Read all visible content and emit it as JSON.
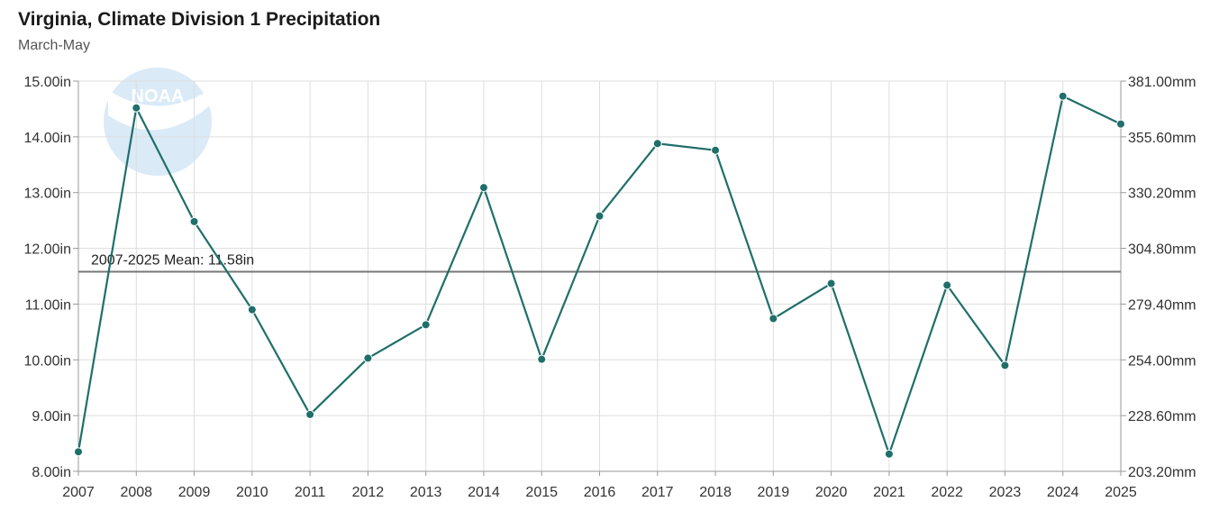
{
  "chart_data": {
    "type": "line",
    "title": "Virginia, Climate Division 1 Precipitation",
    "subtitle": "March-May",
    "x": [
      2007,
      2008,
      2009,
      2010,
      2011,
      2012,
      2013,
      2014,
      2015,
      2016,
      2017,
      2018,
      2019,
      2020,
      2021,
      2022,
      2023,
      2024,
      2025
    ],
    "series": [
      {
        "values": [
          8.35,
          14.52,
          12.48,
          10.9,
          9.02,
          10.03,
          10.63,
          13.09,
          10.01,
          12.58,
          13.88,
          13.76,
          10.74,
          11.37,
          8.31,
          11.34,
          9.9,
          14.73,
          14.23
        ]
      }
    ],
    "ylim": [
      8,
      15
    ],
    "y_ticks_left": [
      "15.00in",
      "14.00in",
      "13.00in",
      "12.00in",
      "11.00in",
      "10.00in",
      "9.00in",
      "8.00in"
    ],
    "y_ticks_right": [
      "381.00mm",
      "355.60mm",
      "330.20mm",
      "304.80mm",
      "279.40mm",
      "254.00mm",
      "228.60mm",
      "203.20mm"
    ],
    "x_ticks": [
      "2007",
      "2008",
      "2009",
      "2010",
      "2011",
      "2012",
      "2013",
      "2014",
      "2015",
      "2016",
      "2017",
      "2018",
      "2019",
      "2020",
      "2021",
      "2022",
      "2023",
      "2024",
      "2025"
    ],
    "mean": {
      "value": 11.58,
      "label": "2007-2025 Mean: 11.58in"
    },
    "grid": true,
    "colors": {
      "line": "#1f6f6a",
      "marker": "#1f6f6a",
      "mean": "#777777",
      "grid": "#dddddd"
    },
    "watermark": "NOAA"
  }
}
